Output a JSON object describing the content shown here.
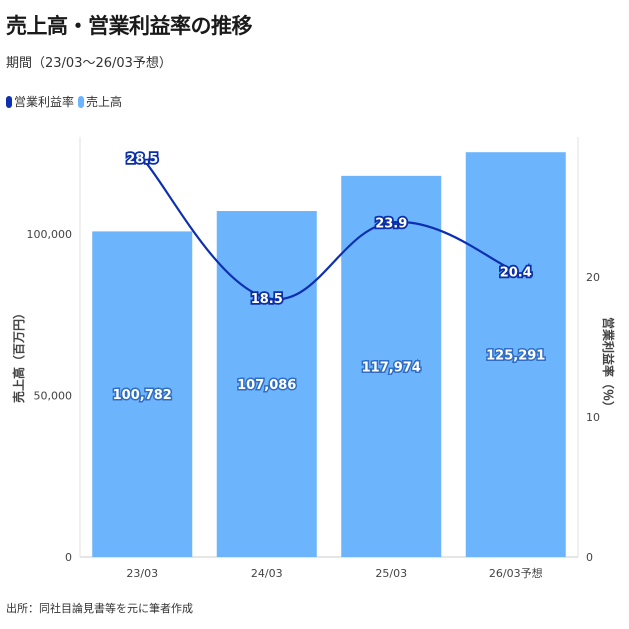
{
  "chart_data": {
    "type": "bar",
    "title": "売上高・営業利益率の推移",
    "subtitle": "期間（23/03〜26/03予想）",
    "categories": [
      "23/03",
      "24/03",
      "25/03",
      "26/03予想"
    ],
    "series": [
      {
        "name": "売上高",
        "kind": "bar",
        "axis": "left",
        "color": "#6cb4fb",
        "values": [
          100782,
          107086,
          117974,
          125291
        ],
        "labels": [
          "100,782",
          "107,086",
          "117,974",
          "125,291"
        ]
      },
      {
        "name": "営業利益率",
        "kind": "line",
        "axis": "right",
        "color": "#0d2fb0",
        "values": [
          28.5,
          18.5,
          23.9,
          20.4
        ],
        "labels": [
          "28.5",
          "18.5",
          "23.9",
          "20.4"
        ]
      }
    ],
    "legend_order": [
      "営業利益率",
      "売上高"
    ],
    "legend_position": "top-left",
    "ylabel": "売上高（百万円）",
    "y2label": "営業利益率（％）",
    "ylim": [
      0,
      130000
    ],
    "y2lim": [
      0,
      30
    ],
    "yticks": [
      0,
      50000,
      100000
    ],
    "ytick_labels": [
      "0",
      "50,000",
      "100,000"
    ],
    "y2ticks": [
      0,
      10,
      20
    ],
    "y2tick_labels": [
      "0",
      "10",
      "20"
    ],
    "grid": false,
    "source": "出所：同社目論見書等を元に筆者作成"
  }
}
